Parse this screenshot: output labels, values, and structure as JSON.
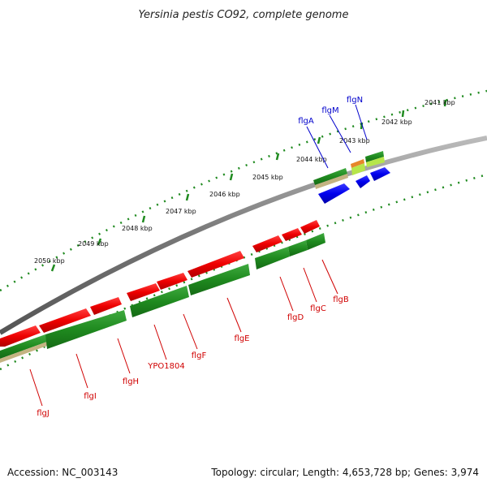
{
  "title": "Yersinia pestis CO92, complete genome",
  "footer": {
    "accession": "Accession: NC_003143",
    "summary": "Topology: circular; Length: 4,653,728 bp; Genes: 3,974"
  },
  "kbp_labels": [
    "2041 kbp",
    "2042 kbp",
    "2043 kbp",
    "2044 kbp",
    "2045 kbp",
    "2046 kbp",
    "2047 kbp",
    "2048 kbp",
    "2049 kbp",
    "2050 kbp"
  ],
  "genes_reverse": [
    "flgJ",
    "flgI",
    "flgH",
    "YPO1804",
    "flgF",
    "flgE",
    "flgD",
    "flgC",
    "flgB"
  ],
  "genes_forward": [
    "flgA",
    "flgM",
    "flgN"
  ],
  "colors": {
    "backbone": "#777777",
    "red": "#ee0000",
    "green": "#1f8a1f",
    "blue": "#0000ee",
    "tick": "#1f8a1f",
    "label_red": "#d00000",
    "label_blue": "#0000cc"
  }
}
